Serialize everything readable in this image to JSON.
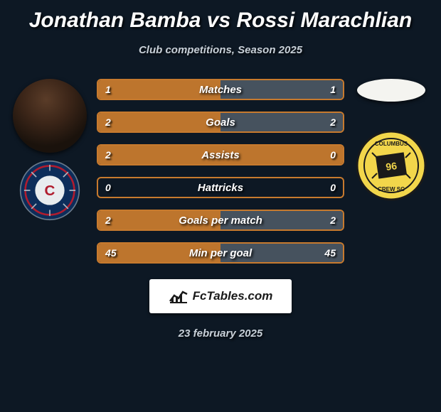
{
  "title": "Jonathan Bamba vs Rossi Marachlian",
  "subtitle": "Club competitions, Season 2025",
  "date": "23 february 2025",
  "brand": "FcTables.com",
  "colors": {
    "background": "#0d1824",
    "bar_border": "#c77a2e",
    "bar_fill_left": "#c77a2e",
    "bar_fill_right": "#4a5562",
    "text": "#ffffff"
  },
  "metrics": [
    {
      "label": "Matches",
      "left_val": "1",
      "right_val": "1",
      "left_pct": 50,
      "right_pct": 50
    },
    {
      "label": "Goals",
      "left_val": "2",
      "right_val": "2",
      "left_pct": 50,
      "right_pct": 50
    },
    {
      "label": "Assists",
      "left_val": "2",
      "right_val": "0",
      "left_pct": 100,
      "right_pct": 0
    },
    {
      "label": "Hattricks",
      "left_val": "0",
      "right_val": "0",
      "left_pct": 0,
      "right_pct": 0
    },
    {
      "label": "Goals per match",
      "left_val": "2",
      "right_val": "2",
      "left_pct": 50,
      "right_pct": 50
    },
    {
      "label": "Min per goal",
      "left_val": "45",
      "right_val": "45",
      "left_pct": 50,
      "right_pct": 50
    }
  ],
  "bar_style": {
    "height": 30,
    "gap": 16,
    "border_radius": 6,
    "border_width": 2,
    "label_fontsize": 15,
    "value_fontsize": 14
  },
  "left_club": {
    "name": "Chicago Fire",
    "primary": "#0d2d5a",
    "accent": "#b01c2e"
  },
  "right_club": {
    "name": "Columbus Crew",
    "primary": "#f2d64b",
    "accent": "#1a1a1a"
  }
}
